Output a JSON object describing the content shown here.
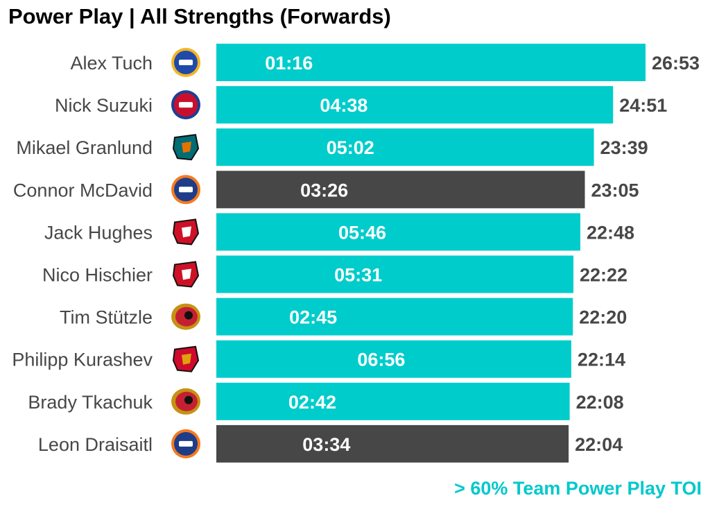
{
  "title": "Power Play | All Strengths (Forwards)",
  "footnote": "> 60% Team Power Play TOI",
  "colors": {
    "highlight": "#00cccc",
    "other": "#474747",
    "label": "#474747",
    "inner_text": "#ffffff"
  },
  "chart_data": {
    "type": "bar",
    "orientation": "horizontal",
    "title": "Power Play | All Strengths (Forwards)",
    "value_unit": "minutes (mm:ss)",
    "bars": [
      {
        "player": "Alex Tuch",
        "team_logo": "buffalo-sabres-logo-icon",
        "total": "26:53",
        "total_minutes": 26.883,
        "inner": "01:16",
        "inner_minutes": 1.267,
        "highlight": true
      },
      {
        "player": "Nick Suzuki",
        "team_logo": "montreal-canadiens-logo-icon",
        "total": "24:51",
        "total_minutes": 24.85,
        "inner": "04:38",
        "inner_minutes": 4.633,
        "highlight": true
      },
      {
        "player": "Mikael Granlund",
        "team_logo": "san-jose-sharks-logo-icon",
        "total": "23:39",
        "total_minutes": 23.65,
        "inner": "05:02",
        "inner_minutes": 5.033,
        "highlight": true
      },
      {
        "player": "Connor McDavid",
        "team_logo": "edmonton-oilers-logo-icon",
        "total": "23:05",
        "total_minutes": 23.083,
        "inner": "03:26",
        "inner_minutes": 3.433,
        "highlight": false
      },
      {
        "player": "Jack Hughes",
        "team_logo": "new-jersey-devils-logo-icon",
        "total": "22:48",
        "total_minutes": 22.8,
        "inner": "05:46",
        "inner_minutes": 5.767,
        "highlight": true
      },
      {
        "player": "Nico Hischier",
        "team_logo": "new-jersey-devils-logo-icon",
        "total": "22:22",
        "total_minutes": 22.367,
        "inner": "05:31",
        "inner_minutes": 5.517,
        "highlight": true
      },
      {
        "player": "Tim Stützle",
        "team_logo": "ottawa-senators-logo-icon",
        "total": "22:20",
        "total_minutes": 22.333,
        "inner": "02:45",
        "inner_minutes": 2.75,
        "highlight": true
      },
      {
        "player": "Philipp Kurashev",
        "team_logo": "chicago-blackhawks-logo-icon",
        "total": "22:14",
        "total_minutes": 22.233,
        "inner": "06:56",
        "inner_minutes": 6.933,
        "highlight": true
      },
      {
        "player": "Brady Tkachuk",
        "team_logo": "ottawa-senators-logo-icon",
        "total": "22:08",
        "total_minutes": 22.133,
        "inner": "02:42",
        "inner_minutes": 2.7,
        "highlight": true
      },
      {
        "player": "Leon Draisaitl",
        "team_logo": "edmonton-oilers-logo-icon",
        "total": "22:04",
        "total_minutes": 22.067,
        "inner": "03:34",
        "inner_minutes": 3.567,
        "highlight": false
      }
    ],
    "xlim": [
      0,
      26.883
    ],
    "grid": false,
    "legend": "none"
  }
}
